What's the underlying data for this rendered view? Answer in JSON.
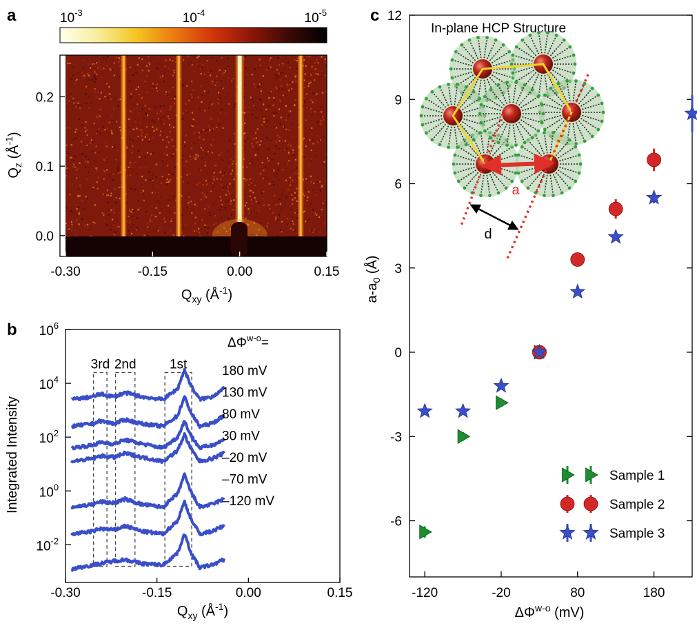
{
  "panels": [
    {
      "id": "a",
      "letter": "a",
      "type": "heatmap",
      "colorbar": {
        "ticks": [
          {
            "base": "10",
            "exp": "-3"
          },
          {
            "base": "10",
            "exp": "-4"
          },
          {
            "base": "10",
            "exp": "-5"
          }
        ],
        "colors": [
          "#fffff0",
          "#f7ed9a",
          "#f5c522",
          "#ec7a10",
          "#d4350a",
          "#8e1607",
          "#3c0a05",
          "#000000"
        ]
      },
      "xlabel": {
        "main": "Q",
        "sub": "xy",
        "unit": " (Å",
        "sup": "-1",
        "close": ")"
      },
      "ylabel": {
        "main": "Q",
        "sub": "z",
        "unit": " (Å",
        "sup": "-1",
        "close": ")"
      },
      "x_ticks": [
        "-0.30",
        "-0.15",
        "0.00",
        "0.15"
      ],
      "y_ticks": [
        "0.0",
        "0.1",
        "0.2"
      ],
      "xlim": [
        -0.3,
        0.15
      ],
      "ylim": [
        -0.03,
        0.26
      ],
      "streak_positions_qxy": [
        -0.2,
        -0.105,
        0.0,
        0.105
      ]
    },
    {
      "id": "b",
      "letter": "b",
      "type": "line",
      "xlabel": {
        "main": "Q",
        "sub": "xy",
        "unit": " (Å",
        "sup": "-1",
        "close": ")"
      },
      "ylabel": "Integrated Intensity",
      "x_ticks": [
        "-0.30",
        "-0.15",
        "0.00",
        "0.15"
      ],
      "y_ticks": [
        {
          "base": "10",
          "exp": "6"
        },
        {
          "base": "10",
          "exp": "4"
        },
        {
          "base": "10",
          "exp": "2"
        },
        {
          "base": "10",
          "exp": "0"
        },
        {
          "base": "10",
          "exp": "-2"
        }
      ],
      "xlim": [
        -0.3,
        0.15
      ],
      "ylim_log10": [
        -3.4,
        6.0
      ],
      "peak_boxes": [
        {
          "label": "3rd",
          "xmin": -0.254,
          "xmax": -0.232
        },
        {
          "label": "2nd",
          "xmin": -0.218,
          "xmax": -0.186
        },
        {
          "label": "1st",
          "xmin": -0.137,
          "xmax": -0.093
        }
      ],
      "legend_title": {
        "main": "ΔΦ",
        "sup": "w-o",
        "tail": "="
      },
      "series_labels": [
        "180 mV",
        "130 mV",
        "80 mV",
        "30 mV",
        "–20 mV",
        "–70 mV",
        "–120 mV"
      ],
      "series_color": "#3a4fc7"
    },
    {
      "id": "c",
      "letter": "c",
      "type": "scatter",
      "xlabel": {
        "main": "ΔΦ",
        "sup": "w-o",
        "tail": " (mV)"
      },
      "ylabel": {
        "main": "a-a",
        "sub": "0",
        "tail": " (Å)"
      },
      "x_ticks": [
        "-120",
        "-20",
        "80",
        "180"
      ],
      "y_ticks": [
        "-6",
        "-3",
        "0",
        "3",
        "6",
        "9",
        "12"
      ],
      "xlim": [
        -140,
        230
      ],
      "ylim": [
        -8,
        12
      ],
      "inset": {
        "title": "In-plane HCP Structure",
        "label_a": "a",
        "label_d": "d"
      },
      "legend": [
        "Sample 1",
        "Sample 2",
        "Sample 3"
      ],
      "colors": {
        "sample1": "#1e8c32",
        "sample2": "#d42828",
        "sample3": "#3a4fc7"
      }
    }
  ],
  "chart_data": [
    {
      "panel": "a",
      "type": "heatmap",
      "title": "",
      "xlabel": "Qxy (Å-1)",
      "ylabel": "Qz (Å-1)",
      "xlim": [
        -0.3,
        0.15
      ],
      "ylim": [
        -0.03,
        0.26
      ],
      "colorbar_range": [
        "10^-3",
        "10^-5"
      ],
      "grid": false
    },
    {
      "panel": "b",
      "type": "line",
      "title": "",
      "xlabel": "Qxy (Å-1)",
      "ylabel": "Integrated Intensity",
      "xlim": [
        -0.3,
        0.15
      ],
      "yscale": "log",
      "series": [
        {
          "name": "180 mV",
          "offset_log10": 4.0,
          "x": [
            -0.29,
            -0.255,
            -0.243,
            -0.22,
            -0.202,
            -0.175,
            -0.14,
            -0.116,
            -0.105,
            -0.094,
            -0.08,
            -0.06,
            -0.04
          ],
          "y_log10": [
            3.4,
            3.5,
            3.6,
            3.5,
            3.65,
            3.5,
            3.4,
            3.8,
            4.5,
            3.9,
            3.4,
            3.5,
            3.8
          ]
        },
        {
          "name": "130 mV",
          "offset_log10": 3.0,
          "x": [
            -0.29,
            -0.255,
            -0.243,
            -0.22,
            -0.202,
            -0.175,
            -0.14,
            -0.116,
            -0.105,
            -0.094,
            -0.08,
            -0.06,
            -0.04
          ],
          "y_log10": [
            2.4,
            2.5,
            2.6,
            2.5,
            2.65,
            2.5,
            2.4,
            2.8,
            3.5,
            2.9,
            2.4,
            2.5,
            2.8
          ]
        },
        {
          "name": "80 mV",
          "offset_log10": 2.0,
          "x": [
            -0.29,
            -0.255,
            -0.243,
            -0.22,
            -0.202,
            -0.175,
            -0.14,
            -0.116,
            -0.105,
            -0.094,
            -0.08,
            -0.06,
            -0.04
          ],
          "y_log10": [
            1.6,
            1.7,
            1.8,
            1.75,
            1.9,
            1.75,
            1.6,
            2.0,
            2.6,
            2.05,
            1.6,
            1.7,
            1.9
          ]
        },
        {
          "name": "30 mV",
          "offset_log10": 1.5,
          "x": [
            -0.29,
            -0.255,
            -0.243,
            -0.22,
            -0.202,
            -0.175,
            -0.14,
            -0.116,
            -0.105,
            -0.094,
            -0.08,
            -0.06,
            -0.04
          ],
          "y_log10": [
            1.1,
            1.2,
            1.3,
            1.25,
            1.4,
            1.25,
            1.1,
            1.5,
            2.1,
            1.55,
            1.1,
            1.2,
            1.4
          ]
        },
        {
          "name": "-20 mV",
          "offset_log10": 0.0,
          "x": [
            -0.29,
            -0.255,
            -0.243,
            -0.22,
            -0.202,
            -0.175,
            -0.14,
            -0.116,
            -0.105,
            -0.094,
            -0.08,
            -0.06,
            -0.04
          ],
          "y_log10": [
            -0.6,
            -0.5,
            -0.4,
            -0.45,
            -0.3,
            -0.5,
            -0.6,
            -0.1,
            0.6,
            -0.05,
            -0.6,
            -0.5,
            -0.3
          ]
        },
        {
          "name": "-70 mV",
          "offset_log10": -1.0,
          "x": [
            -0.29,
            -0.255,
            -0.243,
            -0.22,
            -0.202,
            -0.175,
            -0.14,
            -0.116,
            -0.105,
            -0.094,
            -0.08,
            -0.06,
            -0.04
          ],
          "y_log10": [
            -1.6,
            -1.5,
            -1.4,
            -1.45,
            -1.3,
            -1.5,
            -1.6,
            -1.1,
            -0.4,
            -1.05,
            -1.6,
            -1.5,
            -1.3
          ]
        },
        {
          "name": "-120 mV",
          "offset_log10": -2.0,
          "x": [
            -0.29,
            -0.255,
            -0.243,
            -0.22,
            -0.202,
            -0.175,
            -0.14,
            -0.116,
            -0.105,
            -0.094,
            -0.08,
            -0.06,
            -0.04
          ],
          "y_log10": [
            -2.9,
            -2.75,
            -2.7,
            -2.6,
            -2.55,
            -2.7,
            -2.75,
            -2.3,
            -1.6,
            -2.3,
            -2.85,
            -2.75,
            -2.55
          ]
        }
      ],
      "grid": false
    },
    {
      "panel": "c",
      "type": "scatter",
      "title": "",
      "xlabel": "ΔΦw-o (mV)",
      "ylabel": "a-a0 (Å)",
      "xlim": [
        -140,
        230
      ],
      "ylim": [
        -8,
        12
      ],
      "series": [
        {
          "name": "Sample 1",
          "marker": "triangle-right",
          "x": [
            -120,
            -70,
            -20,
            30
          ],
          "y": [
            -6.4,
            -3.0,
            -1.8,
            0.0
          ],
          "yerr": [
            0.2,
            0.15,
            0.15,
            0.1
          ]
        },
        {
          "name": "Sample 2",
          "marker": "circle",
          "x": [
            30,
            80,
            130,
            180
          ],
          "y": [
            0.0,
            3.3,
            5.1,
            6.85
          ],
          "yerr": [
            0.1,
            0.15,
            0.35,
            0.4
          ]
        },
        {
          "name": "Sample 3",
          "marker": "star",
          "x": [
            -120,
            -70,
            -20,
            30,
            80,
            130,
            180,
            230
          ],
          "y": [
            -2.1,
            -2.1,
            -1.2,
            0.0,
            2.15,
            4.1,
            5.5,
            8.5
          ],
          "yerr": [
            0.1,
            0.1,
            0.1,
            0.1,
            0.1,
            0.1,
            0.2,
            0.65
          ]
        }
      ],
      "legend_position": "bottom-right",
      "grid": false
    }
  ]
}
